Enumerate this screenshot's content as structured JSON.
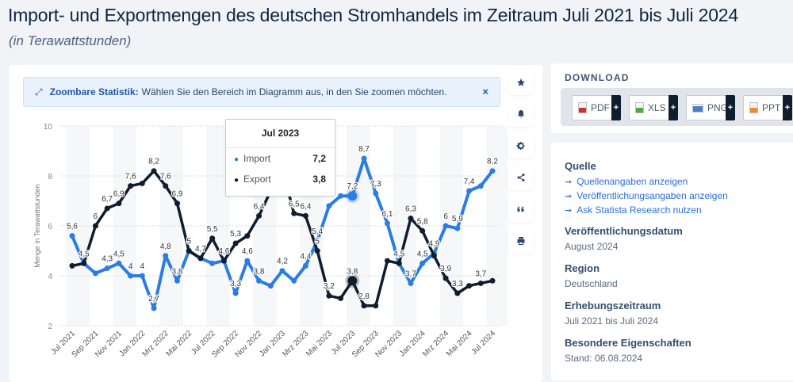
{
  "page": {
    "title": "Import- und Exportmengen des deutschen Stromhandels im Zeitraum Juli 2021 bis Juli 2024",
    "subtitle": "(in Terawattstunden)"
  },
  "zoom_banner": {
    "strong": "Zoombare Statistik:",
    "text": "Wählen Sie den Bereich im Diagramm aus, in den Sie zoomen möchten.",
    "close": "×",
    "icon": "expand-arrows-icon"
  },
  "side_icons": [
    {
      "name": "favorite-star-icon",
      "label": "★"
    },
    {
      "name": "notification-bell-icon",
      "label": "bell"
    },
    {
      "name": "settings-gear-icon",
      "label": "gear"
    },
    {
      "name": "share-icon",
      "label": "share"
    },
    {
      "name": "cite-quote-icon",
      "label": "quote"
    },
    {
      "name": "print-icon",
      "label": "print"
    }
  ],
  "tooltip": {
    "title": "Jul 2023",
    "rows": [
      {
        "label": "Import",
        "value": "7,2",
        "color": "#2a7de1"
      },
      {
        "label": "Export",
        "value": "3,8",
        "color": "#0f1d2e"
      }
    ]
  },
  "download": {
    "title": "DOWNLOAD",
    "buttons": [
      {
        "label": "PDF",
        "color": "#d0302a"
      },
      {
        "label": "XLS",
        "color": "#4fa843"
      },
      {
        "label": "PNG",
        "color": "#4a7fc9"
      },
      {
        "label": "PPT",
        "color": "#ef8a2f"
      }
    ],
    "plus": "+"
  },
  "info": {
    "source_heading": "Quelle",
    "links": [
      "Quellenangaben anzeigen",
      "Veröffentlichungsangaben anzeigen",
      "Ask Statista Research nutzen"
    ],
    "link_arrow": "➞",
    "pub_date_heading": "Veröffentlichungsdatum",
    "pub_date": "August 2024",
    "region_heading": "Region",
    "region": "Deutschland",
    "period_heading": "Erhebungszeitraum",
    "period": "Juli 2021 bis Juli 2024",
    "special_heading": "Besondere Eigenschaften",
    "special": "Stand: 06.08.2024"
  },
  "chart_data": {
    "type": "line",
    "title": "Import- und Exportmengen des deutschen Stromhandels im Zeitraum Juli 2021 bis Juli 2024",
    "ylabel": "Menge in Terawattstunden",
    "xlabel": "",
    "ylim": [
      2,
      10
    ],
    "yticks": [
      2,
      4,
      6,
      8,
      10
    ],
    "grid": true,
    "x": [
      "Jul 2021",
      "Aug 2021",
      "Sep 2021",
      "Okt 2021",
      "Nov 2021",
      "Dez 2021",
      "Jan 2022",
      "Feb 2022",
      "Mrz 2022",
      "Apr 2022",
      "Mai 2022",
      "Jun 2022",
      "Jul 2022",
      "Aug 2022",
      "Sep 2022",
      "Okt 2022",
      "Nov 2022",
      "Dez 2022",
      "Jan 2023",
      "Feb 2023",
      "Mrz 2023",
      "Apr 2023",
      "Mai 2023",
      "Jun 2023",
      "Jul 2023",
      "Aug 2023",
      "Sep 2023",
      "Okt 2023",
      "Nov 2023",
      "Dez 2023",
      "Jan 2024",
      "Feb 2024",
      "Mrz 2024",
      "Apr 2024",
      "Mai 2024",
      "Jun 2024",
      "Jul 2024"
    ],
    "xtick_labels": [
      "Jul 2021",
      "Sep 2021",
      "Nov 2021",
      "Jan 2022",
      "Mrz 2022",
      "Mai 2022",
      "Jul 2022",
      "Sep 2022",
      "Nov 2022",
      "Jan 2023",
      "Mrz 2023",
      "Mai 2023",
      "Jul 2023",
      "Sep 2023",
      "Nov 2023",
      "Jan 2024",
      "Mrz 2024",
      "Mai 2024",
      "Jul 2024"
    ],
    "series": [
      {
        "name": "Import",
        "color": "#2a7de1",
        "values": [
          5.6,
          4.5,
          4.1,
          4.3,
          4.5,
          4.0,
          4.0,
          2.7,
          4.8,
          3.8,
          5.0,
          4.7,
          4.5,
          4.6,
          3.3,
          4.6,
          3.8,
          3.6,
          4.2,
          3.8,
          4.4,
          5.4,
          6.8,
          7.2,
          7.2,
          8.7,
          7.3,
          6.1,
          4.5,
          3.7,
          4.5,
          4.9,
          6.0,
          5.9,
          7.4,
          7.6,
          8.2
        ],
        "labels": [
          "5,6",
          "4,5",
          null,
          "4,3",
          "4,5",
          "4",
          "4",
          "2,7",
          "4,8",
          "3,8",
          null,
          null,
          null,
          null,
          "3,3",
          "4,6",
          "3,8",
          null,
          "4,2",
          null,
          "4,4",
          "5,4",
          null,
          null,
          "7,2",
          "8,7",
          "7,3",
          "6,1",
          null,
          "3,7",
          "4,5",
          "4,9",
          "6",
          "5,9",
          "7,4",
          null,
          "8,2"
        ]
      },
      {
        "name": "Export",
        "color": "#0f1d2e",
        "values": [
          4.4,
          4.5,
          6.0,
          6.7,
          6.9,
          7.6,
          7.7,
          8.2,
          7.6,
          6.9,
          5.0,
          4.7,
          5.5,
          4.6,
          5.3,
          5.6,
          6.4,
          7.4,
          8.3,
          6.5,
          6.4,
          5.0,
          3.2,
          3.1,
          3.8,
          2.8,
          2.8,
          4.6,
          4.5,
          6.3,
          5.8,
          4.8,
          3.9,
          3.3,
          3.6,
          3.7,
          3.8
        ],
        "labels": [
          null,
          null,
          "6",
          "6,7",
          "6,9",
          "7,6",
          null,
          "8,2",
          "7,6",
          "6,9",
          "5",
          "4,7",
          "5,5",
          "4,6",
          "5,3",
          null,
          "6,4",
          null,
          null,
          "6,5",
          "6,4",
          "5",
          "3,2",
          null,
          "3,8",
          "2,8",
          null,
          null,
          "4,5",
          "6,3",
          "5,8",
          null,
          "3,9",
          "3,3",
          null,
          "3,7",
          null
        ]
      }
    ],
    "highlight_index": 24
  }
}
